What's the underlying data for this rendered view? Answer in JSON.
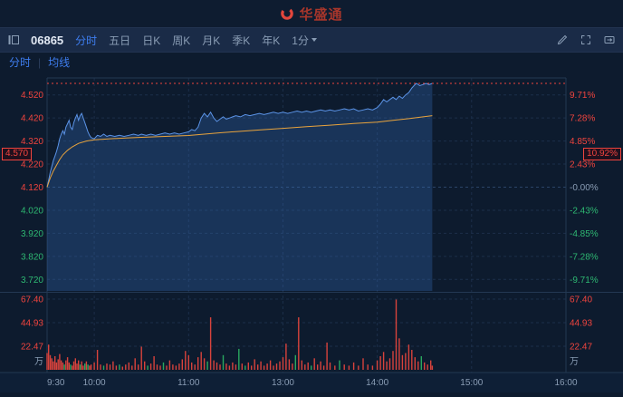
{
  "header": {
    "logo_text": "华盛通"
  },
  "toolbar": {
    "stock_code": "06865",
    "tabs": [
      {
        "label": "分时"
      },
      {
        "label": "五日"
      },
      {
        "label": "日K"
      },
      {
        "label": "周K"
      },
      {
        "label": "月K"
      },
      {
        "label": "季K"
      },
      {
        "label": "年K"
      }
    ],
    "interval": "1分"
  },
  "subtabs": {
    "fenshi": "分时",
    "divider": "|",
    "ma": "均线"
  },
  "chart_data": {
    "type": "line",
    "symbol": "06865",
    "current": {
      "price": "4.570",
      "pct": "10.92%"
    },
    "prev_close": 4.12,
    "x_axis": {
      "labels": [
        "9:30",
        "10:00",
        "11:00",
        "13:00",
        "14:00",
        "15:00",
        "16:00"
      ],
      "minutes": [
        0,
        30,
        90,
        150,
        210,
        270,
        330
      ],
      "total_minutes": 330
    },
    "y_axis_price": {
      "max": 4.57,
      "min": 3.67
    },
    "gridlines": [
      {
        "value": 4.52,
        "price": "4.520",
        "pct": "9.71%",
        "price_color": "#f0443e",
        "pct_color": "#f0443e"
      },
      {
        "value": 4.42,
        "price": "4.420",
        "pct": "7.28%",
        "price_color": "#f0443e",
        "pct_color": "#f0443e"
      },
      {
        "value": 4.32,
        "price": "4.320",
        "pct": "4.85%",
        "price_color": "#f0443e",
        "pct_color": "#f0443e"
      },
      {
        "value": 4.22,
        "price": "4.220",
        "pct": "2.43%",
        "price_color": "#f0443e",
        "pct_color": "#f0443e"
      },
      {
        "value": 4.12,
        "price": "4.120",
        "pct": "-0.00%",
        "price_color": "#f0443e",
        "pct_color": "#8a9db5"
      },
      {
        "value": 4.02,
        "price": "4.020",
        "pct": "-2.43%",
        "price_color": "#2eb872",
        "pct_color": "#2eb872"
      },
      {
        "value": 3.92,
        "price": "3.920",
        "pct": "-4.85%",
        "price_color": "#2eb872",
        "pct_color": "#2eb872"
      },
      {
        "value": 3.82,
        "price": "3.820",
        "pct": "-7.28%",
        "price_color": "#2eb872",
        "pct_color": "#2eb872"
      },
      {
        "value": 3.72,
        "price": "3.720",
        "pct": "-9.71%",
        "price_color": "#2eb872",
        "pct_color": "#2eb872"
      }
    ],
    "volume_axis": {
      "values": [
        67.4,
        44.93,
        22.47
      ],
      "labels": [
        "67.40",
        "44.93",
        "22.47"
      ],
      "unit": "万",
      "scale_max": 72.6,
      "color": "#f0443e"
    },
    "colors": {
      "line": "#5b93e6",
      "fill": "rgba(58,118,200,0.28)",
      "avg": "#e8a33d",
      "up": "#d8433c",
      "down": "#2aa85f",
      "grid": "#1c2f4a",
      "grid_mid": "#2b4467",
      "border": "#233852",
      "axis_text": "#8a9db5",
      "accent_red": "#f0443e"
    },
    "series": {
      "price": [
        [
          0,
          4.12
        ],
        [
          1,
          4.15
        ],
        [
          2,
          4.185
        ],
        [
          3,
          4.21
        ],
        [
          4,
          4.235
        ],
        [
          5,
          4.255
        ],
        [
          6,
          4.275
        ],
        [
          7,
          4.3
        ],
        [
          8,
          4.33
        ],
        [
          9,
          4.35
        ],
        [
          10,
          4.365
        ],
        [
          11,
          4.35
        ],
        [
          12,
          4.38
        ],
        [
          13,
          4.395
        ],
        [
          14,
          4.41
        ],
        [
          15,
          4.38
        ],
        [
          16,
          4.37
        ],
        [
          17,
          4.4
        ],
        [
          18,
          4.42
        ],
        [
          19,
          4.435
        ],
        [
          20,
          4.41
        ],
        [
          21,
          4.43
        ],
        [
          22,
          4.44
        ],
        [
          23,
          4.42
        ],
        [
          24,
          4.4
        ],
        [
          25,
          4.38
        ],
        [
          26,
          4.36
        ],
        [
          27,
          4.345
        ],
        [
          28,
          4.335
        ],
        [
          30,
          4.33
        ],
        [
          32,
          4.345
        ],
        [
          34,
          4.34
        ],
        [
          36,
          4.35
        ],
        [
          38,
          4.34
        ],
        [
          40,
          4.345
        ],
        [
          43,
          4.34
        ],
        [
          46,
          4.345
        ],
        [
          49,
          4.34
        ],
        [
          52,
          4.345
        ],
        [
          55,
          4.35
        ],
        [
          58,
          4.345
        ],
        [
          60,
          4.35
        ],
        [
          63,
          4.345
        ],
        [
          66,
          4.35
        ],
        [
          69,
          4.345
        ],
        [
          72,
          4.35
        ],
        [
          75,
          4.355
        ],
        [
          78,
          4.35
        ],
        [
          81,
          4.355
        ],
        [
          84,
          4.35
        ],
        [
          87,
          4.355
        ],
        [
          90,
          4.36
        ],
        [
          92,
          4.37
        ],
        [
          94,
          4.365
        ],
        [
          96,
          4.38
        ],
        [
          98,
          4.42
        ],
        [
          100,
          4.44
        ],
        [
          102,
          4.425
        ],
        [
          104,
          4.445
        ],
        [
          106,
          4.42
        ],
        [
          108,
          4.405
        ],
        [
          110,
          4.415
        ],
        [
          112,
          4.425
        ],
        [
          114,
          4.415
        ],
        [
          116,
          4.42
        ],
        [
          118,
          4.425
        ],
        [
          120,
          4.43
        ],
        [
          123,
          4.425
        ],
        [
          126,
          4.435
        ],
        [
          129,
          4.43
        ],
        [
          132,
          4.435
        ],
        [
          135,
          4.44
        ],
        [
          138,
          4.435
        ],
        [
          141,
          4.44
        ],
        [
          144,
          4.445
        ],
        [
          147,
          4.44
        ],
        [
          150,
          4.445
        ],
        [
          153,
          4.44
        ],
        [
          156,
          4.445
        ],
        [
          159,
          4.45
        ],
        [
          162,
          4.445
        ],
        [
          165,
          4.45
        ],
        [
          168,
          4.445
        ],
        [
          171,
          4.45
        ],
        [
          174,
          4.455
        ],
        [
          177,
          4.45
        ],
        [
          180,
          4.455
        ],
        [
          183,
          4.45
        ],
        [
          186,
          4.455
        ],
        [
          189,
          4.46
        ],
        [
          192,
          4.455
        ],
        [
          195,
          4.46
        ],
        [
          198,
          4.45
        ],
        [
          201,
          4.455
        ],
        [
          204,
          4.46
        ],
        [
          207,
          4.455
        ],
        [
          210,
          4.465
        ],
        [
          212,
          4.48
        ],
        [
          214,
          4.5
        ],
        [
          216,
          4.49
        ],
        [
          218,
          4.5
        ],
        [
          220,
          4.51
        ],
        [
          222,
          4.5
        ],
        [
          224,
          4.515
        ],
        [
          226,
          4.505
        ],
        [
          228,
          4.52
        ],
        [
          230,
          4.53
        ],
        [
          232,
          4.55
        ],
        [
          234,
          4.565
        ],
        [
          235,
          4.57
        ],
        [
          237,
          4.56
        ],
        [
          239,
          4.565
        ],
        [
          241,
          4.57
        ],
        [
          243,
          4.565
        ],
        [
          245,
          4.57
        ]
      ],
      "avg": [
        [
          0,
          4.12
        ],
        [
          2,
          4.16
        ],
        [
          4,
          4.19
        ],
        [
          6,
          4.215
        ],
        [
          8,
          4.24
        ],
        [
          10,
          4.26
        ],
        [
          13,
          4.28
        ],
        [
          16,
          4.295
        ],
        [
          20,
          4.31
        ],
        [
          25,
          4.32
        ],
        [
          30,
          4.325
        ],
        [
          40,
          4.33
        ],
        [
          50,
          4.333
        ],
        [
          60,
          4.336
        ],
        [
          75,
          4.34
        ],
        [
          90,
          4.344
        ],
        [
          100,
          4.35
        ],
        [
          110,
          4.356
        ],
        [
          120,
          4.361
        ],
        [
          135,
          4.368
        ],
        [
          150,
          4.375
        ],
        [
          165,
          4.382
        ],
        [
          180,
          4.389
        ],
        [
          195,
          4.396
        ],
        [
          210,
          4.402
        ],
        [
          220,
          4.41
        ],
        [
          230,
          4.417
        ],
        [
          238,
          4.424
        ],
        [
          245,
          4.43
        ]
      ]
    },
    "volume": [
      [
        0,
        16,
        1
      ],
      [
        1,
        24,
        1
      ],
      [
        2,
        14,
        1
      ],
      [
        3,
        11,
        1
      ],
      [
        4,
        8,
        1
      ],
      [
        5,
        13,
        1
      ],
      [
        6,
        7,
        1
      ],
      [
        7,
        10,
        1
      ],
      [
        8,
        15,
        1
      ],
      [
        9,
        9,
        1
      ],
      [
        10,
        7,
        1
      ],
      [
        11,
        5,
        -1
      ],
      [
        12,
        9,
        1
      ],
      [
        13,
        12,
        1
      ],
      [
        14,
        7,
        1
      ],
      [
        15,
        5,
        -1
      ],
      [
        16,
        4,
        1
      ],
      [
        17,
        8,
        1
      ],
      [
        18,
        11,
        1
      ],
      [
        19,
        6,
        1
      ],
      [
        20,
        9,
        1
      ],
      [
        21,
        5,
        -1
      ],
      [
        22,
        8,
        1
      ],
      [
        23,
        4,
        1
      ],
      [
        24,
        6,
        -1
      ],
      [
        25,
        8,
        1
      ],
      [
        26,
        5,
        -1
      ],
      [
        27,
        4,
        1
      ],
      [
        28,
        5,
        1
      ],
      [
        30,
        7,
        1
      ],
      [
        32,
        19,
        1
      ],
      [
        34,
        5,
        1
      ],
      [
        36,
        4,
        -1
      ],
      [
        38,
        6,
        1
      ],
      [
        40,
        5,
        1
      ],
      [
        42,
        8,
        1
      ],
      [
        44,
        4,
        1
      ],
      [
        46,
        5,
        -1
      ],
      [
        48,
        3,
        1
      ],
      [
        50,
        5,
        1
      ],
      [
        52,
        7,
        1
      ],
      [
        54,
        4,
        1
      ],
      [
        56,
        11,
        1
      ],
      [
        58,
        5,
        1
      ],
      [
        60,
        22,
        1
      ],
      [
        62,
        8,
        1
      ],
      [
        64,
        4,
        -1
      ],
      [
        66,
        6,
        1
      ],
      [
        68,
        13,
        1
      ],
      [
        70,
        5,
        1
      ],
      [
        72,
        4,
        1
      ],
      [
        74,
        7,
        -1
      ],
      [
        76,
        4,
        1
      ],
      [
        78,
        9,
        1
      ],
      [
        80,
        5,
        1
      ],
      [
        82,
        4,
        1
      ],
      [
        84,
        6,
        1
      ],
      [
        86,
        10,
        1
      ],
      [
        88,
        18,
        1
      ],
      [
        90,
        14,
        1
      ],
      [
        92,
        7,
        1
      ],
      [
        94,
        5,
        1
      ],
      [
        96,
        12,
        1
      ],
      [
        98,
        17,
        1
      ],
      [
        100,
        11,
        1
      ],
      [
        102,
        8,
        -1
      ],
      [
        104,
        50,
        1
      ],
      [
        106,
        9,
        1
      ],
      [
        108,
        7,
        1
      ],
      [
        110,
        5,
        1
      ],
      [
        112,
        14,
        -1
      ],
      [
        114,
        6,
        1
      ],
      [
        116,
        4,
        1
      ],
      [
        118,
        7,
        1
      ],
      [
        120,
        5,
        1
      ],
      [
        122,
        20,
        -1
      ],
      [
        124,
        6,
        1
      ],
      [
        126,
        4,
        -1
      ],
      [
        128,
        7,
        1
      ],
      [
        130,
        4,
        1
      ],
      [
        132,
        10,
        1
      ],
      [
        134,
        5,
        1
      ],
      [
        136,
        8,
        1
      ],
      [
        138,
        4,
        1
      ],
      [
        140,
        6,
        1
      ],
      [
        142,
        9,
        1
      ],
      [
        144,
        4,
        1
      ],
      [
        146,
        6,
        1
      ],
      [
        148,
        8,
        1
      ],
      [
        150,
        12,
        1
      ],
      [
        152,
        25,
        1
      ],
      [
        154,
        10,
        1
      ],
      [
        156,
        6,
        1
      ],
      [
        158,
        14,
        -1
      ],
      [
        160,
        50,
        1
      ],
      [
        162,
        9,
        1
      ],
      [
        164,
        5,
        1
      ],
      [
        166,
        7,
        1
      ],
      [
        168,
        4,
        -1
      ],
      [
        170,
        11,
        1
      ],
      [
        172,
        5,
        1
      ],
      [
        174,
        8,
        1
      ],
      [
        176,
        4,
        1
      ],
      [
        178,
        26,
        1
      ],
      [
        180,
        7,
        1
      ],
      [
        183,
        4,
        1
      ],
      [
        186,
        9,
        -1
      ],
      [
        189,
        5,
        1
      ],
      [
        192,
        4,
        1
      ],
      [
        195,
        7,
        1
      ],
      [
        198,
        4,
        1
      ],
      [
        201,
        11,
        1
      ],
      [
        204,
        5,
        1
      ],
      [
        207,
        4,
        1
      ],
      [
        210,
        9,
        1
      ],
      [
        212,
        13,
        1
      ],
      [
        214,
        17,
        1
      ],
      [
        216,
        8,
        1
      ],
      [
        218,
        11,
        1
      ],
      [
        220,
        18,
        1
      ],
      [
        222,
        67,
        1
      ],
      [
        224,
        30,
        1
      ],
      [
        226,
        14,
        1
      ],
      [
        228,
        16,
        1
      ],
      [
        230,
        24,
        1
      ],
      [
        232,
        19,
        1
      ],
      [
        234,
        12,
        1
      ],
      [
        236,
        8,
        1
      ],
      [
        238,
        13,
        -1
      ],
      [
        240,
        7,
        1
      ],
      [
        242,
        5,
        1
      ],
      [
        244,
        9,
        1
      ],
      [
        245,
        4,
        1
      ]
    ]
  }
}
